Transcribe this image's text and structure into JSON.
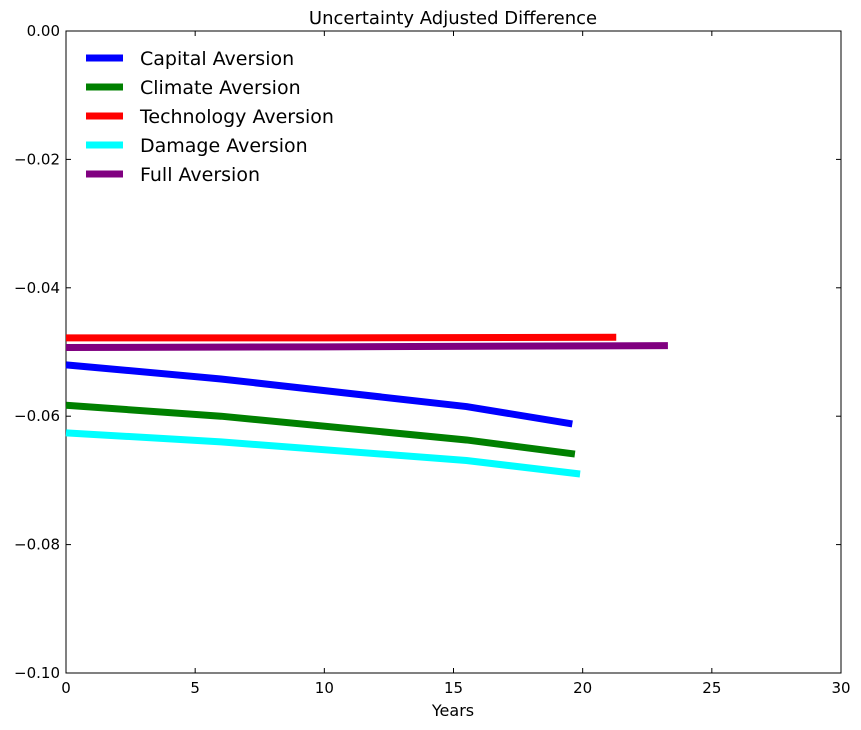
{
  "chart_data": {
    "type": "line",
    "title": "Uncertainty Adjusted Difference",
    "xlabel": "Years",
    "ylabel": "",
    "xlim": [
      0,
      30
    ],
    "ylim": [
      -0.1,
      0.0
    ],
    "x_ticks": [
      0,
      5,
      10,
      15,
      20,
      25,
      30
    ],
    "x_tick_labels": [
      "0",
      "5",
      "10",
      "15",
      "20",
      "25",
      "30"
    ],
    "y_ticks": [
      0.0,
      -0.02,
      -0.04,
      -0.06,
      -0.08,
      -0.1
    ],
    "y_tick_labels": [
      "0.00",
      "−0.02",
      "−0.04",
      "−0.06",
      "−0.08",
      "−0.10"
    ],
    "grid": false,
    "legend_position": "top-left",
    "series": [
      {
        "name": "Capital Aversion",
        "color": "#0000ff",
        "x": [
          0,
          6,
          15.5,
          19.6
        ],
        "y": [
          -0.052,
          -0.0542,
          -0.0585,
          -0.0612
        ]
      },
      {
        "name": "Climate Aversion",
        "color": "#008000",
        "x": [
          0,
          6,
          15.5,
          19.7
        ],
        "y": [
          -0.0583,
          -0.06,
          -0.0637,
          -0.0659
        ]
      },
      {
        "name": "Technology Aversion",
        "color": "#ff0000",
        "x": [
          0,
          10,
          21.3
        ],
        "y": [
          -0.0478,
          -0.0478,
          -0.0477
        ]
      },
      {
        "name": "Damage Aversion",
        "color": "#00ffff",
        "x": [
          0,
          6,
          15.5,
          19.9
        ],
        "y": [
          -0.0626,
          -0.064,
          -0.0669,
          -0.069
        ]
      },
      {
        "name": "Full Aversion",
        "color": "#800080",
        "x": [
          0,
          10,
          23.3
        ],
        "y": [
          -0.0493,
          -0.0492,
          -0.049
        ]
      }
    ]
  }
}
